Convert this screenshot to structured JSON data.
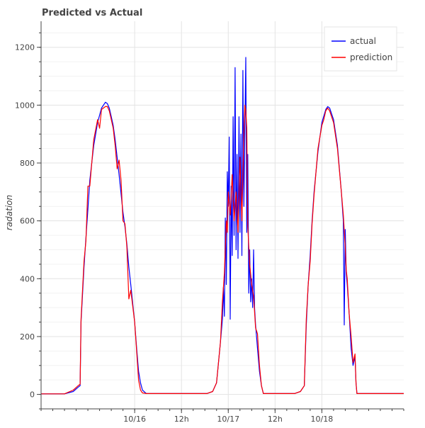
{
  "chart_data": {
    "type": "line",
    "title": "Predicted vs Actual",
    "xlabel": "",
    "ylabel": "radation",
    "xlim": [
      "2016-10-15T00:00",
      "2016-10-18T21:00"
    ],
    "ylim": [
      -50,
      1290
    ],
    "yticks": [
      0,
      200,
      400,
      600,
      800,
      1000,
      1200
    ],
    "xticks": [
      {
        "t": "2016-10-16T00:00",
        "label": "10/16"
      },
      {
        "t": "2016-10-16T12:00",
        "label": "12h"
      },
      {
        "t": "2016-10-17T00:00",
        "label": "10/17"
      },
      {
        "t": "2016-10-17T12:00",
        "label": "12h"
      },
      {
        "t": "2016-10-18T00:00",
        "label": "10/18"
      }
    ],
    "grid": true,
    "legend_position": "top-right",
    "series": [
      {
        "name": "actual",
        "color": "#0000ff",
        "points": [
          [
            "2016-10-15T00:00",
            2
          ],
          [
            "2016-10-15T06:00",
            2
          ],
          [
            "2016-10-15T08:15",
            10
          ],
          [
            "2016-10-15T09:30",
            25
          ],
          [
            "2016-10-15T10:00",
            30
          ],
          [
            "2016-10-15T10:15",
            250
          ],
          [
            "2016-10-15T11:00",
            440
          ],
          [
            "2016-10-15T11:30",
            540
          ],
          [
            "2016-10-15T12:00",
            640
          ],
          [
            "2016-10-15T12:30",
            740
          ],
          [
            "2016-10-15T13:30",
            860
          ],
          [
            "2016-10-15T14:30",
            940
          ],
          [
            "2016-10-15T15:30",
            990
          ],
          [
            "2016-10-15T16:30",
            1010
          ],
          [
            "2016-10-15T17:00",
            1005
          ],
          [
            "2016-10-15T17:30",
            990
          ],
          [
            "2016-10-15T18:00",
            960
          ],
          [
            "2016-10-15T18:30",
            930
          ],
          [
            "2016-10-15T19:00",
            880
          ],
          [
            "2016-10-15T20:00",
            760
          ],
          [
            "2016-10-15T21:00",
            630
          ],
          [
            "2016-10-15T21:30",
            580
          ],
          [
            "2016-10-15T22:00",
            520
          ],
          [
            "2016-10-15T22:30",
            440
          ],
          [
            "2016-10-15T23:00",
            380
          ],
          [
            "2016-10-16T00:00",
            250
          ],
          [
            "2016-10-16T00:30",
            160
          ],
          [
            "2016-10-16T01:00",
            80
          ],
          [
            "2016-10-16T01:30",
            40
          ],
          [
            "2016-10-16T02:00",
            15
          ],
          [
            "2016-10-16T03:00",
            3
          ],
          [
            "2016-10-16T18:30",
            3
          ],
          [
            "2016-10-16T20:00",
            10
          ],
          [
            "2016-10-16T21:00",
            40
          ],
          [
            "2016-10-16T22:00",
            180
          ],
          [
            "2016-10-16T22:30",
            260
          ],
          [
            "2016-10-16T22:45",
            370
          ],
          [
            "2016-10-16T23:00",
            270
          ],
          [
            "2016-10-16T23:15",
            610
          ],
          [
            "2016-10-16T23:30",
            380
          ],
          [
            "2016-10-16T23:45",
            770
          ],
          [
            "2016-10-17T00:00",
            650
          ],
          [
            "2016-10-17T00:15",
            890
          ],
          [
            "2016-10-17T00:30",
            260
          ],
          [
            "2016-10-17T00:45",
            720
          ],
          [
            "2016-10-17T01:00",
            480
          ],
          [
            "2016-10-17T01:15",
            960
          ],
          [
            "2016-10-17T01:30",
            550
          ],
          [
            "2016-10-17T01:45",
            1130
          ],
          [
            "2016-10-17T02:00",
            500
          ],
          [
            "2016-10-17T02:15",
            830
          ],
          [
            "2016-10-17T02:30",
            470
          ],
          [
            "2016-10-17T02:45",
            960
          ],
          [
            "2016-10-17T03:00",
            560
          ],
          [
            "2016-10-17T03:15",
            900
          ],
          [
            "2016-10-17T03:30",
            480
          ],
          [
            "2016-10-17T03:45",
            1120
          ],
          [
            "2016-10-17T04:00",
            650
          ],
          [
            "2016-10-17T04:15",
            920
          ],
          [
            "2016-10-17T04:30",
            1165
          ],
          [
            "2016-10-17T04:45",
            560
          ],
          [
            "2016-10-17T05:00",
            830
          ],
          [
            "2016-10-17T05:15",
            350
          ],
          [
            "2016-10-17T05:30",
            500
          ],
          [
            "2016-10-17T05:45",
            320
          ],
          [
            "2016-10-17T06:00",
            400
          ],
          [
            "2016-10-17T06:15",
            300
          ],
          [
            "2016-10-17T06:30",
            500
          ],
          [
            "2016-10-17T06:45",
            300
          ],
          [
            "2016-10-17T07:00",
            240
          ],
          [
            "2016-10-17T07:30",
            160
          ],
          [
            "2016-10-17T08:00",
            80
          ],
          [
            "2016-10-17T08:30",
            30
          ],
          [
            "2016-10-17T09:00",
            3
          ],
          [
            "2016-10-17T17:00",
            3
          ],
          [
            "2016-10-17T18:30",
            10
          ],
          [
            "2016-10-17T19:30",
            30
          ],
          [
            "2016-10-17T20:00",
            240
          ],
          [
            "2016-10-17T20:30",
            380
          ],
          [
            "2016-10-17T21:00",
            480
          ],
          [
            "2016-10-17T21:30",
            600
          ],
          [
            "2016-10-17T22:00",
            700
          ],
          [
            "2016-10-17T23:00",
            840
          ],
          [
            "2016-10-18T00:00",
            940
          ],
          [
            "2016-10-18T01:00",
            985
          ],
          [
            "2016-10-18T01:30",
            995
          ],
          [
            "2016-10-18T02:00",
            990
          ],
          [
            "2016-10-18T03:00",
            950
          ],
          [
            "2016-10-18T04:00",
            860
          ],
          [
            "2016-10-18T05:00",
            700
          ],
          [
            "2016-10-18T05:30",
            600
          ],
          [
            "2016-10-18T05:45",
            240
          ],
          [
            "2016-10-18T06:00",
            570
          ],
          [
            "2016-10-18T06:15",
            420
          ],
          [
            "2016-10-18T06:30",
            380
          ],
          [
            "2016-10-18T07:00",
            280
          ],
          [
            "2016-10-18T07:30",
            160
          ],
          [
            "2016-10-18T08:00",
            100
          ],
          [
            "2016-10-18T08:30",
            130
          ],
          [
            "2016-10-18T08:45",
            40
          ],
          [
            "2016-10-18T09:00",
            3
          ],
          [
            "2016-10-18T21:00",
            3
          ]
        ]
      },
      {
        "name": "prediction",
        "color": "#ff0000",
        "points": [
          [
            "2016-10-15T00:00",
            2
          ],
          [
            "2016-10-15T06:00",
            2
          ],
          [
            "2016-10-15T08:15",
            15
          ],
          [
            "2016-10-15T09:30",
            30
          ],
          [
            "2016-10-15T10:00",
            35
          ],
          [
            "2016-10-15T10:15",
            260
          ],
          [
            "2016-10-15T11:00",
            460
          ],
          [
            "2016-10-15T11:30",
            530
          ],
          [
            "2016-10-15T12:00",
            720
          ],
          [
            "2016-10-15T12:30",
            720
          ],
          [
            "2016-10-15T13:30",
            880
          ],
          [
            "2016-10-15T14:30",
            950
          ],
          [
            "2016-10-15T15:00",
            920
          ],
          [
            "2016-10-15T15:30",
            985
          ],
          [
            "2016-10-15T16:30",
            995
          ],
          [
            "2016-10-15T17:00",
            995
          ],
          [
            "2016-10-15T17:30",
            980
          ],
          [
            "2016-10-15T18:00",
            950
          ],
          [
            "2016-10-15T18:30",
            920
          ],
          [
            "2016-10-15T19:00",
            860
          ],
          [
            "2016-10-15T19:30",
            780
          ],
          [
            "2016-10-15T20:00",
            810
          ],
          [
            "2016-10-15T20:30",
            740
          ],
          [
            "2016-10-15T21:00",
            600
          ],
          [
            "2016-10-15T21:30",
            590
          ],
          [
            "2016-10-15T22:00",
            510
          ],
          [
            "2016-10-15T22:30",
            330
          ],
          [
            "2016-10-15T23:00",
            360
          ],
          [
            "2016-10-16T00:00",
            250
          ],
          [
            "2016-10-16T00:30",
            150
          ],
          [
            "2016-10-16T01:00",
            50
          ],
          [
            "2016-10-16T01:30",
            15
          ],
          [
            "2016-10-16T02:00",
            5
          ],
          [
            "2016-10-16T03:00",
            3
          ],
          [
            "2016-10-16T18:30",
            3
          ],
          [
            "2016-10-16T20:00",
            10
          ],
          [
            "2016-10-16T21:00",
            40
          ],
          [
            "2016-10-16T22:00",
            180
          ],
          [
            "2016-10-16T22:30",
            320
          ],
          [
            "2016-10-16T23:00",
            420
          ],
          [
            "2016-10-16T23:30",
            600
          ],
          [
            "2016-10-16T23:45",
            560
          ],
          [
            "2016-10-17T00:00",
            700
          ],
          [
            "2016-10-17T00:30",
            620
          ],
          [
            "2016-10-17T01:00",
            760
          ],
          [
            "2016-10-17T01:30",
            600
          ],
          [
            "2016-10-17T02:00",
            700
          ],
          [
            "2016-10-17T02:30",
            560
          ],
          [
            "2016-10-17T03:00",
            820
          ],
          [
            "2016-10-17T03:30",
            600
          ],
          [
            "2016-10-17T04:00",
            900
          ],
          [
            "2016-10-17T04:15",
            1000
          ],
          [
            "2016-10-17T04:30",
            980
          ],
          [
            "2016-10-17T04:45",
            920
          ],
          [
            "2016-10-17T05:00",
            580
          ],
          [
            "2016-10-17T05:30",
            450
          ],
          [
            "2016-10-17T06:00",
            380
          ],
          [
            "2016-10-17T06:30",
            340
          ],
          [
            "2016-10-17T07:00",
            230
          ],
          [
            "2016-10-17T07:30",
            210
          ],
          [
            "2016-10-17T08:00",
            100
          ],
          [
            "2016-10-17T08:30",
            30
          ],
          [
            "2016-10-17T09:00",
            3
          ],
          [
            "2016-10-17T17:00",
            3
          ],
          [
            "2016-10-17T18:30",
            10
          ],
          [
            "2016-10-17T19:30",
            30
          ],
          [
            "2016-10-17T20:00",
            260
          ],
          [
            "2016-10-17T20:30",
            380
          ],
          [
            "2016-10-17T21:00",
            460
          ],
          [
            "2016-10-17T21:30",
            590
          ],
          [
            "2016-10-17T22:00",
            690
          ],
          [
            "2016-10-17T23:00",
            850
          ],
          [
            "2016-10-18T00:00",
            930
          ],
          [
            "2016-10-18T00:30",
            950
          ],
          [
            "2016-10-18T01:00",
            980
          ],
          [
            "2016-10-18T01:30",
            990
          ],
          [
            "2016-10-18T02:00",
            980
          ],
          [
            "2016-10-18T03:00",
            940
          ],
          [
            "2016-10-18T04:00",
            850
          ],
          [
            "2016-10-18T05:00",
            700
          ],
          [
            "2016-10-18T05:30",
            620
          ],
          [
            "2016-10-18T06:00",
            510
          ],
          [
            "2016-10-18T06:15",
            430
          ],
          [
            "2016-10-18T06:30",
            400
          ],
          [
            "2016-10-18T07:00",
            280
          ],
          [
            "2016-10-18T07:30",
            200
          ],
          [
            "2016-10-18T08:00",
            110
          ],
          [
            "2016-10-18T08:30",
            140
          ],
          [
            "2016-10-18T08:45",
            40
          ],
          [
            "2016-10-18T09:00",
            3
          ],
          [
            "2016-10-18T21:00",
            3
          ]
        ]
      }
    ]
  }
}
